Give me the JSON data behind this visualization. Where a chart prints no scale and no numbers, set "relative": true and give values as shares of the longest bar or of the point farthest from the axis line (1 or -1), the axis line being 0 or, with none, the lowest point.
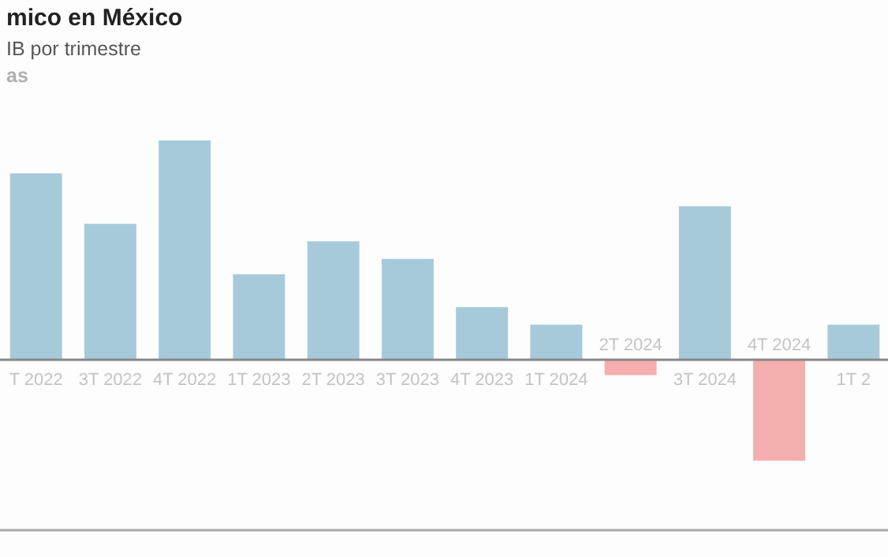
{
  "chart_data": {
    "type": "bar",
    "title": "mico en México",
    "subtitle": "IB por trimestre",
    "annotations": [
      "as"
    ],
    "relative": true,
    "categories": [
      "T 2022",
      "3T 2022",
      "4T 2022",
      "1T 2023",
      "2T 2023",
      "3T 2023",
      "4T 2023",
      "1T 2024",
      "2T 2024",
      "3T 2024",
      "4T 2024",
      "1T 2"
    ],
    "values": [
      0.85,
      0.62,
      1,
      0.39,
      0.54,
      0.46,
      0.24,
      0.16,
      -0.07,
      0.7,
      -0.46,
      0.16
    ],
    "colors": [
      "#a7cadb",
      "#a7cadb",
      "#a7cadb",
      "#a7cadb",
      "#a7cadb",
      "#a7cadb",
      "#a7cadb",
      "#a7cadb",
      "#f4aeae",
      "#a7cadb",
      "#f4aeae",
      "#a7cadb"
    ]
  }
}
